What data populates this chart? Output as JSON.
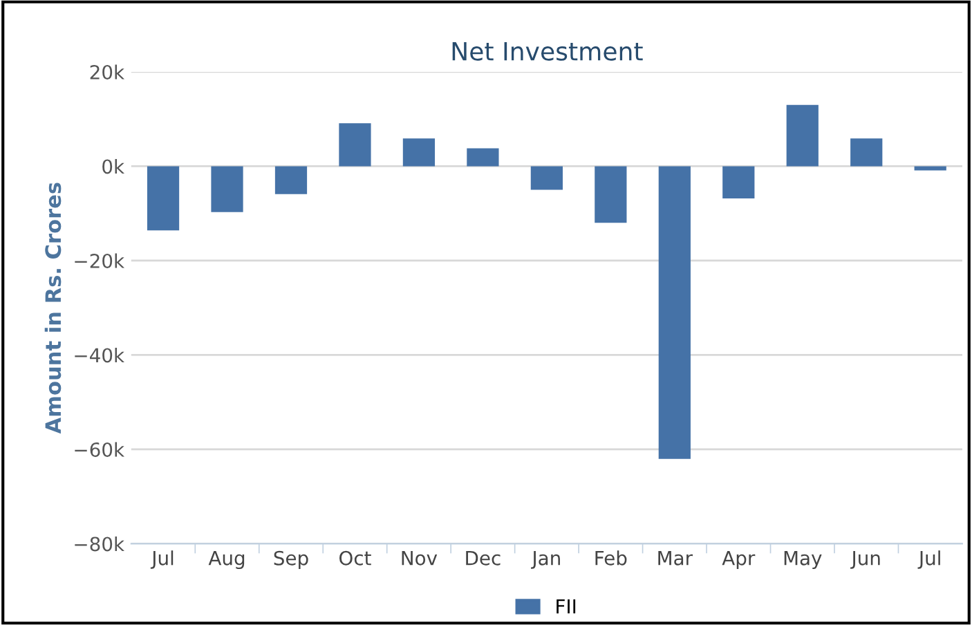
{
  "chart_data": {
    "type": "bar",
    "title": "Net Investment",
    "ylabel": "Amount in Rs. Crores",
    "categories": [
      "Jul",
      "Aug",
      "Sep",
      "Oct",
      "Nov",
      "Dec",
      "Jan",
      "Feb",
      "Mar",
      "Apr",
      "May",
      "Jun",
      "Jul"
    ],
    "series": [
      {
        "name": "FII",
        "color": "#4572a7",
        "values": [
          -13600,
          -9700,
          -5900,
          9100,
          5900,
          3800,
          -5000,
          -12000,
          -62000,
          -6800,
          13000,
          5900,
          -900
        ]
      }
    ],
    "ylim": [
      -80000,
      20000
    ],
    "yticks": [
      {
        "value": -80000,
        "label": "−80k"
      },
      {
        "value": -60000,
        "label": "−60k"
      },
      {
        "value": -40000,
        "label": "−40k"
      },
      {
        "value": -20000,
        "label": "−20k"
      },
      {
        "value": 0,
        "label": "0k"
      },
      {
        "value": 20000,
        "label": "20k"
      }
    ],
    "grid": "y",
    "legend": "bottom"
  }
}
